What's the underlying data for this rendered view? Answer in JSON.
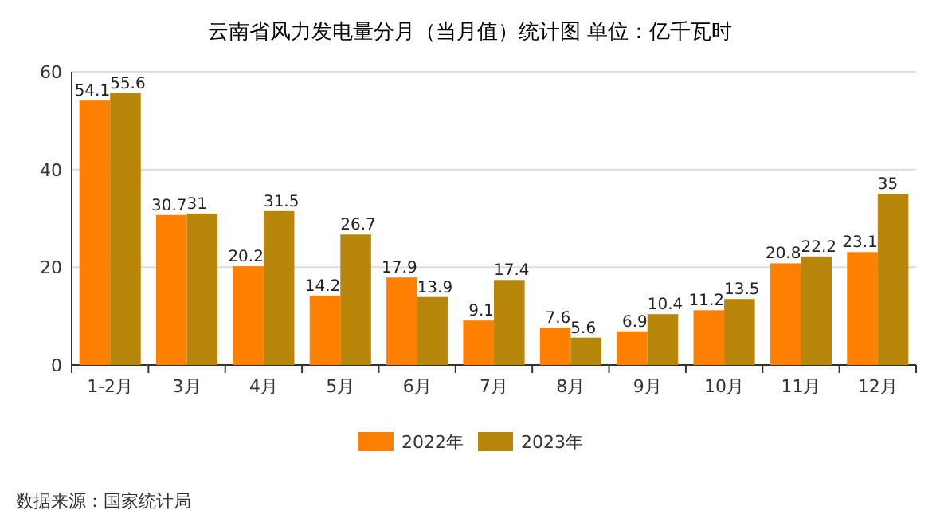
{
  "chart_data": {
    "type": "bar",
    "title": "云南省风力发电量分月（当月值）统计图 单位：亿千瓦时",
    "categories": [
      "1-2月",
      "3月",
      "4月",
      "5月",
      "6月",
      "7月",
      "8月",
      "9月",
      "10月",
      "11月",
      "12月"
    ],
    "series": [
      {
        "name": "2022年",
        "color": "#ff8000",
        "values": [
          54.1,
          30.7,
          20.2,
          14.2,
          17.9,
          9.1,
          7.6,
          6.9,
          11.2,
          20.8,
          23.1
        ]
      },
      {
        "name": "2023年",
        "color": "#b8860b",
        "values": [
          55.6,
          31,
          31.5,
          26.7,
          13.9,
          17.4,
          5.6,
          10.4,
          13.5,
          22.2,
          35
        ]
      }
    ],
    "ylim": [
      0,
      60
    ],
    "yticks": [
      0,
      20,
      40,
      60
    ],
    "grid": "y",
    "legend": "bottom",
    "data_labels": true,
    "annotations": [
      "数据来源：国家统计局"
    ]
  }
}
